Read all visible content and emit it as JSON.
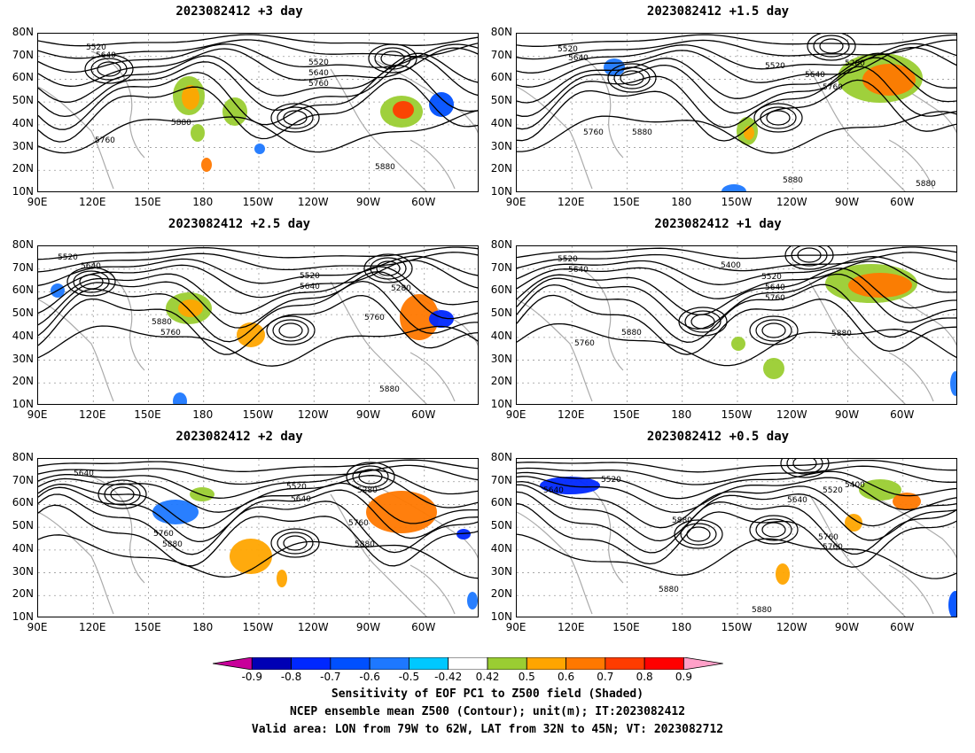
{
  "panels": [
    {
      "title": "2023082412 +3 day",
      "contour_labels": [
        "5520",
        "5640",
        "5520",
        "5640",
        "5760",
        "5880",
        "5760",
        "5880"
      ]
    },
    {
      "title": "2023082412 +1.5 day",
      "contour_labels": [
        "5520",
        "5640",
        "5520",
        "5640",
        "5280",
        "5760",
        "5880",
        "5760",
        "5880",
        "5880"
      ]
    },
    {
      "title": "2023082412 +2.5 day",
      "contour_labels": [
        "5520",
        "5640",
        "5520",
        "5640",
        "5280",
        "5760",
        "5880",
        "5760",
        "5880"
      ]
    },
    {
      "title": "2023082412 +1 day",
      "contour_labels": [
        "5520",
        "5640",
        "5400",
        "5520",
        "5640",
        "5760",
        "5760",
        "5880",
        "5880"
      ]
    },
    {
      "title": "2023082412 +2 day",
      "contour_labels": [
        "5640",
        "5520",
        "5640",
        "5280",
        "5760",
        "5760",
        "5880",
        "5880"
      ]
    },
    {
      "title": "2023082412 +0.5 day",
      "contour_labels": [
        "5520",
        "5640",
        "5400",
        "5520",
        "5640",
        "5760",
        "5760",
        "5880",
        "5880",
        "5880"
      ]
    }
  ],
  "axes": {
    "lat_labels": [
      "80N",
      "70N",
      "60N",
      "50N",
      "40N",
      "30N",
      "20N",
      "10N"
    ],
    "lon_labels": [
      "90E",
      "120E",
      "150E",
      "180",
      "150W",
      "120W",
      "90W",
      "60W"
    ]
  },
  "colorbar": {
    "labels": [
      "-0.9",
      "-0.8",
      "-0.7",
      "-0.6",
      "-0.5",
      "-0.42",
      "0.42",
      "0.5",
      "0.6",
      "0.7",
      "0.8",
      "0.9"
    ],
    "colors": [
      "#c8009a",
      "#0000b4",
      "#0028ff",
      "#0050ff",
      "#1e78ff",
      "#00c8ff",
      "#ffffff",
      "#9acd32",
      "#ffa500",
      "#ff7800",
      "#ff3c00",
      "#ff0000",
      "#ffa0c8"
    ]
  },
  "caption": {
    "line1": "Sensitivity of EOF PC1 to Z500 field (Shaded)",
    "line2": "NCEP ensemble mean Z500 (Contour); unit(m); IT:2023082412",
    "line3": "Valid area: LON from 79W to 62W, LAT from 32N to 45N; VT: 2023082712"
  }
}
